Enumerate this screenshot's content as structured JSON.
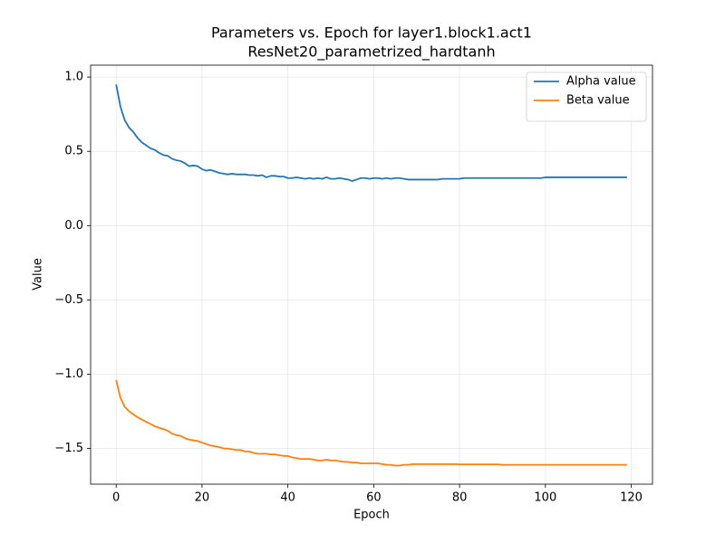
{
  "chart_data": {
    "type": "line",
    "title": "Parameters vs. Epoch for layer1.block1.act1",
    "subtitle": "ResNet20_parametrized_hardtanh",
    "xlabel": "Epoch",
    "ylabel": "Value",
    "x": [
      0,
      1,
      2,
      3,
      4,
      5,
      6,
      7,
      8,
      9,
      10,
      11,
      12,
      13,
      14,
      15,
      16,
      17,
      18,
      19,
      20,
      21,
      22,
      23,
      24,
      25,
      26,
      27,
      28,
      29,
      30,
      31,
      32,
      33,
      34,
      35,
      36,
      37,
      38,
      39,
      40,
      41,
      42,
      43,
      44,
      45,
      46,
      47,
      48,
      49,
      50,
      51,
      52,
      53,
      54,
      55,
      56,
      57,
      58,
      59,
      60,
      61,
      62,
      63,
      64,
      65,
      66,
      67,
      68,
      69,
      70,
      71,
      72,
      73,
      74,
      75,
      76,
      77,
      78,
      79,
      80,
      81,
      82,
      83,
      84,
      85,
      86,
      87,
      88,
      89,
      90,
      91,
      92,
      93,
      94,
      95,
      96,
      97,
      98,
      99,
      100,
      101,
      102,
      103,
      104,
      105,
      106,
      107,
      108,
      109,
      110,
      111,
      112,
      113,
      114,
      115,
      116,
      117,
      118,
      119
    ],
    "series": [
      {
        "name": "Alpha value",
        "color": "#1f77b4",
        "values": [
          0.95,
          0.8,
          0.71,
          0.66,
          0.63,
          0.59,
          0.56,
          0.54,
          0.52,
          0.51,
          0.49,
          0.475,
          0.47,
          0.45,
          0.44,
          0.435,
          0.42,
          0.4,
          0.405,
          0.4,
          0.38,
          0.37,
          0.375,
          0.365,
          0.355,
          0.35,
          0.345,
          0.35,
          0.345,
          0.345,
          0.345,
          0.34,
          0.34,
          0.335,
          0.34,
          0.325,
          0.335,
          0.335,
          0.33,
          0.33,
          0.32,
          0.32,
          0.325,
          0.32,
          0.315,
          0.32,
          0.315,
          0.32,
          0.315,
          0.325,
          0.315,
          0.315,
          0.32,
          0.315,
          0.31,
          0.3,
          0.31,
          0.32,
          0.32,
          0.315,
          0.32,
          0.32,
          0.315,
          0.32,
          0.315,
          0.32,
          0.32,
          0.315,
          0.31,
          0.31,
          0.31,
          0.31,
          0.31,
          0.31,
          0.31,
          0.31,
          0.315,
          0.315,
          0.315,
          0.315,
          0.315,
          0.32,
          0.32,
          0.32,
          0.32,
          0.32,
          0.32,
          0.32,
          0.32,
          0.32,
          0.32,
          0.32,
          0.32,
          0.32,
          0.32,
          0.32,
          0.32,
          0.32,
          0.32,
          0.32,
          0.325,
          0.325,
          0.325,
          0.325,
          0.325,
          0.325,
          0.325,
          0.325,
          0.325,
          0.325,
          0.325,
          0.325,
          0.325,
          0.325,
          0.325,
          0.325,
          0.325,
          0.325,
          0.325,
          0.325
        ]
      },
      {
        "name": "Beta value",
        "color": "#ff7f0e",
        "values": [
          -1.04,
          -1.16,
          -1.22,
          -1.25,
          -1.27,
          -1.29,
          -1.305,
          -1.32,
          -1.335,
          -1.35,
          -1.36,
          -1.37,
          -1.38,
          -1.4,
          -1.41,
          -1.415,
          -1.43,
          -1.44,
          -1.445,
          -1.45,
          -1.46,
          -1.47,
          -1.48,
          -1.485,
          -1.49,
          -1.5,
          -1.5,
          -1.505,
          -1.51,
          -1.51,
          -1.52,
          -1.52,
          -1.53,
          -1.535,
          -1.535,
          -1.535,
          -1.54,
          -1.54,
          -1.545,
          -1.55,
          -1.55,
          -1.56,
          -1.565,
          -1.57,
          -1.57,
          -1.57,
          -1.575,
          -1.58,
          -1.58,
          -1.575,
          -1.58,
          -1.58,
          -1.585,
          -1.59,
          -1.59,
          -1.595,
          -1.595,
          -1.6,
          -1.6,
          -1.6,
          -1.6,
          -1.6,
          -1.605,
          -1.61,
          -1.61,
          -1.615,
          -1.615,
          -1.61,
          -1.61,
          -1.605,
          -1.605,
          -1.605,
          -1.605,
          -1.605,
          -1.605,
          -1.605,
          -1.605,
          -1.605,
          -1.605,
          -1.605,
          -1.607,
          -1.607,
          -1.607,
          -1.607,
          -1.607,
          -1.607,
          -1.607,
          -1.607,
          -1.607,
          -1.607,
          -1.61,
          -1.61,
          -1.61,
          -1.61,
          -1.61,
          -1.61,
          -1.61,
          -1.61,
          -1.61,
          -1.61,
          -1.61,
          -1.61,
          -1.61,
          -1.61,
          -1.61,
          -1.61,
          -1.61,
          -1.61,
          -1.61,
          -1.61,
          -1.61,
          -1.61,
          -1.61,
          -1.61,
          -1.61,
          -1.61,
          -1.61,
          -1.61,
          -1.61,
          -1.61
        ]
      }
    ],
    "xlim": [
      -5.95,
      124.95
    ],
    "ylim": [
      -1.74,
      1.08
    ],
    "xticks": [
      0,
      20,
      40,
      60,
      80,
      100,
      120
    ],
    "yticks": [
      {
        "value": -1.5,
        "label": "−1.5"
      },
      {
        "value": -1.0,
        "label": "−1.0"
      },
      {
        "value": -0.5,
        "label": "−0.5"
      },
      {
        "value": 0.0,
        "label": "0.0"
      },
      {
        "value": 0.5,
        "label": "0.5"
      },
      {
        "value": 1.0,
        "label": "1.0"
      }
    ],
    "grid": true,
    "legend": "upper right"
  }
}
